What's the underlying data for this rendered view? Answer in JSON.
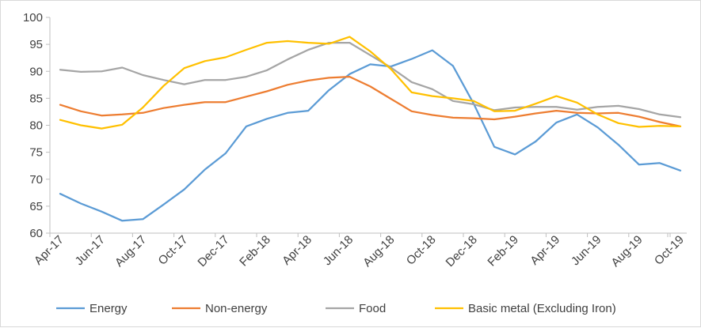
{
  "chart_data": {
    "type": "line",
    "title": "",
    "xlabel": "",
    "ylabel": "",
    "ylim": [
      60,
      100
    ],
    "y_ticks": [
      "60",
      "65",
      "70",
      "75",
      "80",
      "85",
      "90",
      "95",
      "100"
    ],
    "x": [
      "Apr-17",
      "May-17",
      "Jun-17",
      "Jul-17",
      "Aug-17",
      "Sep-17",
      "Oct-17",
      "Nov-17",
      "Dec-17",
      "Jan-18",
      "Feb-18",
      "Mar-18",
      "Apr-18",
      "May-18",
      "Jun-18",
      "Jul-18",
      "Aug-18",
      "Sep-18",
      "Oct-18",
      "Nov-18",
      "Dec-18",
      "Jan-19",
      "Feb-19",
      "Mar-19",
      "Apr-19",
      "May-19",
      "Jun-19",
      "Jul-19",
      "Aug-19",
      "Sep-19",
      "Oct-19"
    ],
    "x_tick_labels": [
      "Apr-17",
      "Jun-17",
      "Aug-17",
      "Oct-17",
      "Dec-17",
      "Feb-18",
      "Apr-18",
      "Jun-18",
      "Aug-18",
      "Oct-18",
      "Dec-18",
      "Feb-19",
      "Apr-19",
      "Jun-19",
      "Aug-19",
      "Oct-19"
    ],
    "grid": false,
    "legend_position": "bottom",
    "series": [
      {
        "name": "Energy",
        "color": "#5b9bd5",
        "values": [
          67.3,
          65.5,
          64.0,
          62.3,
          62.6,
          65.3,
          68.1,
          71.8,
          74.8,
          79.8,
          81.2,
          82.3,
          82.7,
          86.5,
          89.5,
          91.3,
          90.9,
          92.3,
          93.9,
          91.0,
          84.0,
          76.0,
          74.6,
          77.0,
          80.5,
          82.0,
          79.6,
          76.4,
          72.7,
          73.0,
          71.6
        ]
      },
      {
        "name": "Non-energy",
        "color": "#ed7d31",
        "values": [
          83.8,
          82.6,
          81.8,
          82.0,
          82.3,
          83.2,
          83.8,
          84.3,
          84.3,
          85.3,
          86.3,
          87.5,
          88.3,
          88.8,
          89.0,
          87.2,
          84.9,
          82.6,
          81.9,
          81.4,
          81.3,
          81.1,
          81.6,
          82.2,
          82.7,
          82.3,
          82.2,
          82.3,
          81.6,
          80.6,
          79.8
        ]
      },
      {
        "name": "Food",
        "color": "#a5a5a5",
        "values": [
          90.3,
          89.9,
          90.0,
          90.7,
          89.3,
          88.4,
          87.6,
          88.4,
          88.4,
          89.0,
          90.2,
          92.2,
          94.0,
          95.3,
          95.3,
          93.0,
          90.7,
          88.0,
          86.7,
          84.5,
          83.9,
          82.8,
          83.3,
          83.4,
          83.4,
          82.9,
          83.4,
          83.6,
          83.0,
          82.0,
          81.5
        ]
      },
      {
        "name": "Basic metal (Excluding Iron)",
        "color": "#ffc000",
        "values": [
          81.0,
          80.0,
          79.4,
          80.1,
          83.3,
          87.3,
          90.6,
          91.9,
          92.6,
          94.0,
          95.3,
          95.6,
          95.3,
          95.1,
          96.4,
          93.7,
          90.4,
          86.1,
          85.4,
          85.0,
          84.5,
          82.6,
          82.7,
          84.0,
          85.4,
          84.2,
          82.0,
          80.4,
          79.7,
          79.9,
          79.8
        ]
      }
    ]
  }
}
